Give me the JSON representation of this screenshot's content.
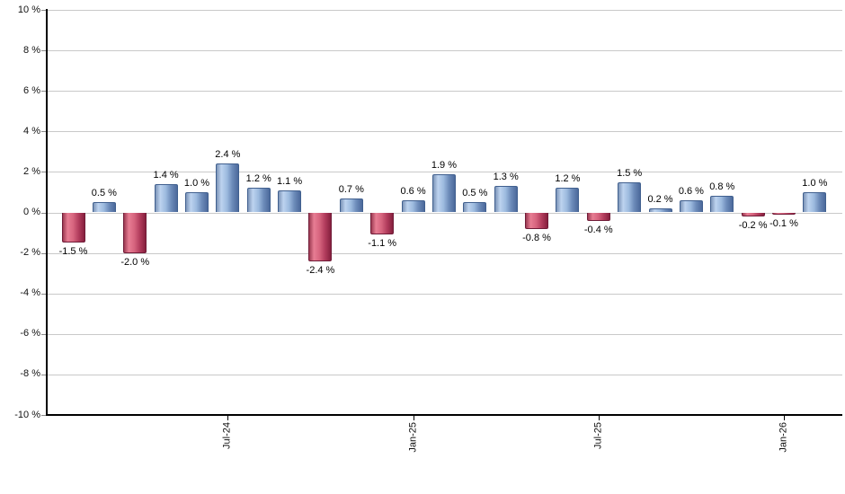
{
  "chart_data": {
    "type": "bar",
    "title": "",
    "xlabel": "",
    "ylabel": "",
    "values": [
      -1.5,
      0.5,
      -2.0,
      1.4,
      1.0,
      2.4,
      1.2,
      1.1,
      -2.4,
      0.7,
      -1.1,
      0.6,
      1.9,
      0.5,
      1.3,
      -0.8,
      1.2,
      -0.4,
      1.5,
      0.2,
      0.6,
      0.8,
      -0.2,
      -0.1,
      1.0
    ],
    "bar_labels": [
      "-1.5 %",
      "0.5 %",
      "-2.0 %",
      "1.4 %",
      "1.0 %",
      "2.4 %",
      "1.2 %",
      "1.1 %",
      "-2.4 %",
      "0.7 %",
      "-1.1 %",
      "0.6 %",
      "1.9 %",
      "0.5 %",
      "1.3 %",
      "-0.8 %",
      "1.2 %",
      "-0.4 %",
      "1.5 %",
      "0.2 %",
      "0.6 %",
      "0.8 %",
      "-0.2 %",
      "-0.1 %",
      "1.0 %"
    ],
    "ylim": [
      -10,
      10
    ],
    "y_tick_values": [
      10,
      8,
      6,
      4,
      2,
      0,
      -2,
      -4,
      -6,
      -8,
      -10
    ],
    "y_tick_labels": [
      "10 %",
      "8 %",
      "6 %",
      "4 %",
      "2 %",
      "0 %",
      "-2 %",
      "-4 %",
      "-6 %",
      "-8 %",
      "-10 %"
    ],
    "x_ticks": [
      {
        "bar_index": 5,
        "label": "Jul-24"
      },
      {
        "bar_index": 11,
        "label": "Jan-25"
      },
      {
        "bar_index": 17,
        "label": "Jul-25"
      },
      {
        "bar_index": 23,
        "label": "Jan-26"
      }
    ],
    "grid": true,
    "legend": false,
    "colors": {
      "positive_bar_main": "#9CBADE",
      "positive_bar_dark": "#4C699B",
      "positive_bar_border": "#41608F",
      "negative_bar_main": "#D6647E",
      "negative_bar_dark": "#86203E",
      "negative_bar_border": "#701C38",
      "grid_line": "#C9C9C9",
      "axis_line": "#000000",
      "label_text": "#111111",
      "background": "#FFFFFF"
    }
  }
}
